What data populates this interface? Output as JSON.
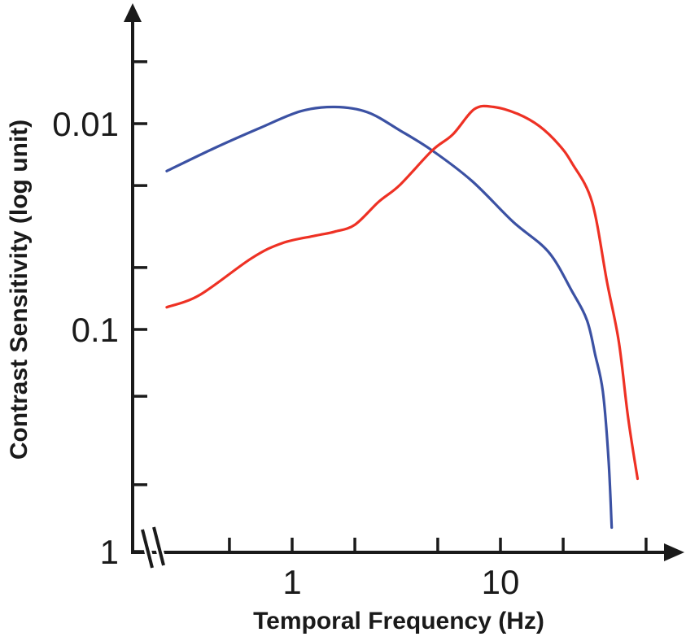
{
  "figure": {
    "background": "#ffffff",
    "text_color": "#1a1a1a",
    "axis_color": "#1a1a1a"
  },
  "chart_data": {
    "type": "line",
    "title": "",
    "xlabel": "Temporal Frequency (Hz)",
    "ylabel": "Contrast Sensitivity (log unit)",
    "x_scale": "log",
    "y_scale": "log",
    "y_axis_direction": "inverted (0.01 at top, 1 at bottom)",
    "x_axis_break_near_origin": true,
    "grid": false,
    "legend": "none",
    "xlim": [
      0.22,
      55
    ],
    "ylim_top_to_bottom": [
      0.004,
      1
    ],
    "x_tick_marks": [
      0.5,
      1,
      2,
      5,
      10,
      20,
      50
    ],
    "x_tick_labels": [
      {
        "value": 1,
        "label": "1"
      },
      {
        "value": 10,
        "label": "10"
      }
    ],
    "y_tick_marks": [
      0.005,
      0.01,
      0.02,
      0.05,
      0.1,
      0.2,
      0.5,
      1
    ],
    "y_tick_labels": [
      {
        "value": 0.01,
        "label": "0.01"
      },
      {
        "value": 0.1,
        "label": "0.1"
      },
      {
        "value": 1,
        "label": "1"
      }
    ],
    "series": [
      {
        "name": "blue-curve",
        "color": "#3b51a3",
        "peak_hz": 1.6,
        "points": [
          [
            0.25,
            0.017
          ],
          [
            0.42,
            0.0132
          ],
          [
            0.7,
            0.0105
          ],
          [
            1.1,
            0.0087
          ],
          [
            1.6,
            0.0083
          ],
          [
            2.3,
            0.0088
          ],
          [
            3.3,
            0.0108
          ],
          [
            4.7,
            0.0135
          ],
          [
            7.3,
            0.019
          ],
          [
            11.5,
            0.03
          ],
          [
            17,
            0.042
          ],
          [
            22,
            0.065
          ],
          [
            26,
            0.09
          ],
          [
            28.5,
            0.13
          ],
          [
            31,
            0.19
          ],
          [
            33,
            0.38
          ],
          [
            34.2,
            0.78
          ]
        ]
      },
      {
        "name": "red-curve",
        "color": "#ee3124",
        "peak_hz": 9.3,
        "points": [
          [
            0.25,
            0.078
          ],
          [
            0.36,
            0.068
          ],
          [
            0.64,
            0.045
          ],
          [
            0.9,
            0.038
          ],
          [
            1.3,
            0.035
          ],
          [
            1.6,
            0.0335
          ],
          [
            2.0,
            0.031
          ],
          [
            2.6,
            0.024
          ],
          [
            3.3,
            0.0198
          ],
          [
            4.7,
            0.0135
          ],
          [
            5.9,
            0.0113
          ],
          [
            7.5,
            0.0085
          ],
          [
            9.3,
            0.0083
          ],
          [
            12.2,
            0.009
          ],
          [
            15.4,
            0.0103
          ],
          [
            19,
            0.0126
          ],
          [
            22,
            0.0155
          ],
          [
            27.5,
            0.024
          ],
          [
            32.5,
            0.059
          ],
          [
            37,
            0.114
          ],
          [
            41,
            0.25
          ],
          [
            45.5,
            0.47
          ]
        ]
      }
    ]
  }
}
